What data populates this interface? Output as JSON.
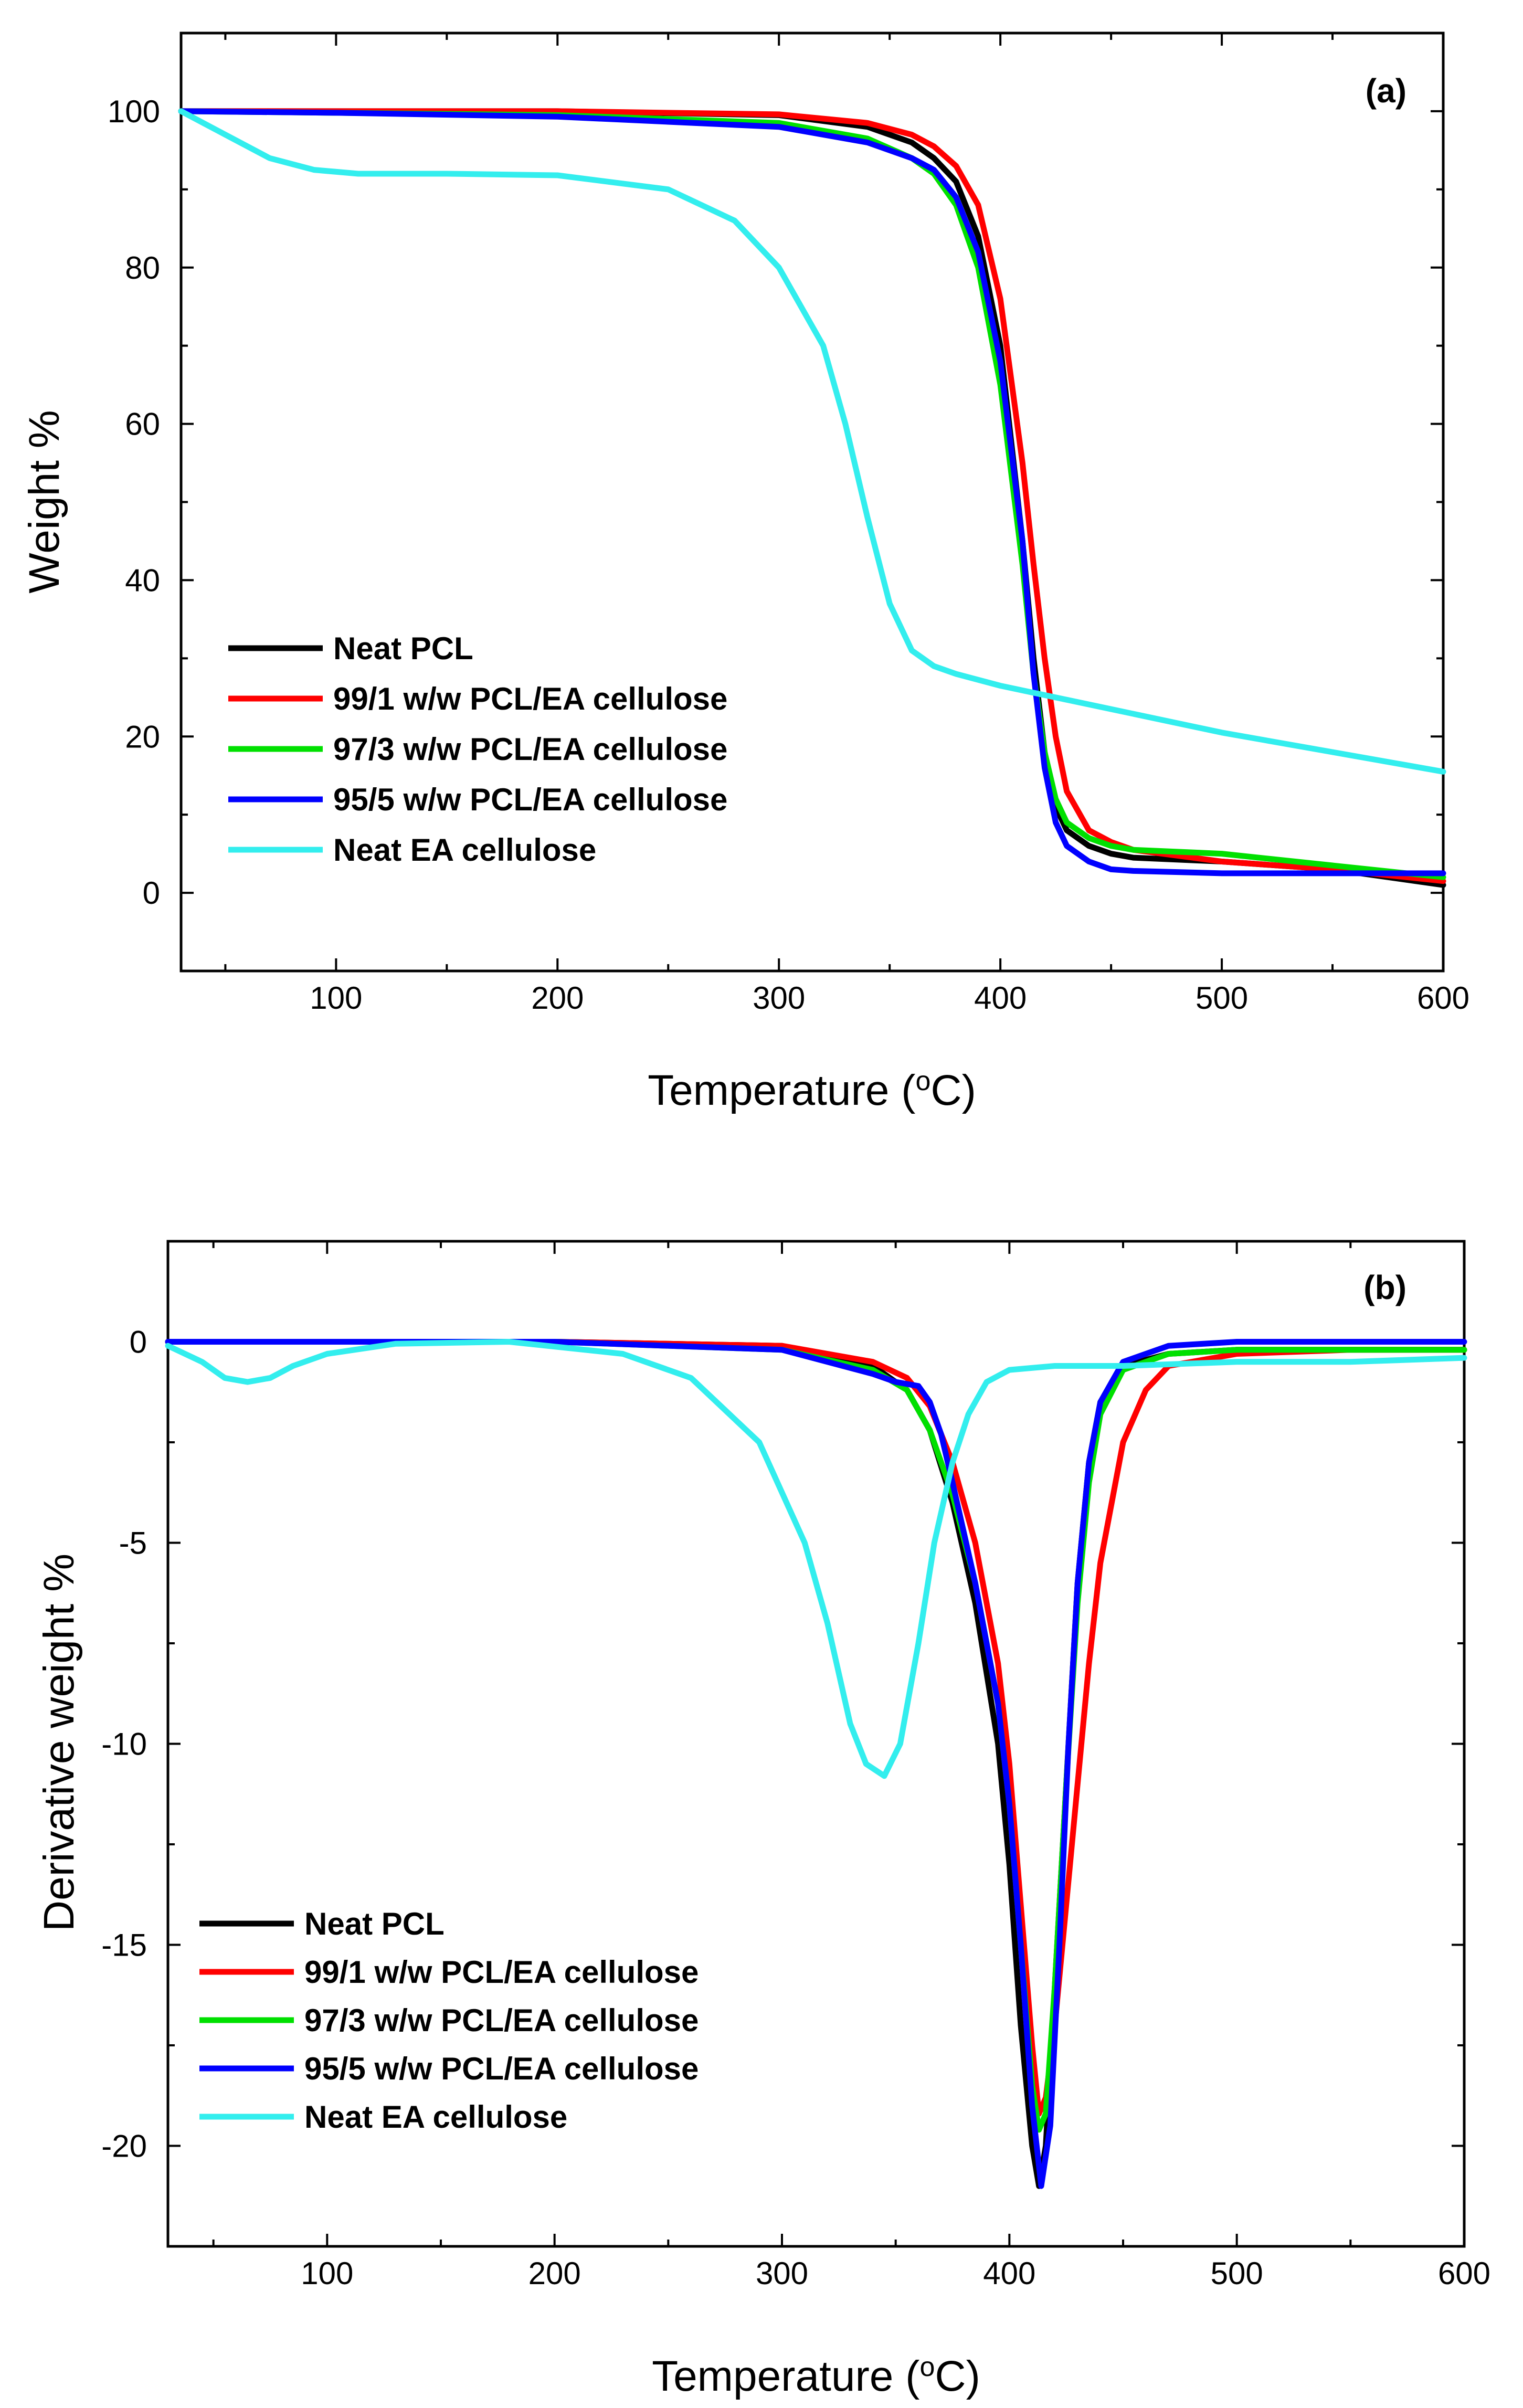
{
  "chart_data": [
    {
      "type": "line",
      "panel_label": "(a)",
      "xlabel_main": "Temperature (",
      "xlabel_sup": "o",
      "xlabel_end": "C)",
      "ylabel": "Weight %",
      "xlim": [
        30,
        600
      ],
      "ylim": [
        -10,
        110
      ],
      "xticks": [
        100,
        200,
        300,
        400,
        500,
        600
      ],
      "yticks": [
        0,
        20,
        40,
        60,
        80,
        100
      ],
      "legend_position": "lower-left",
      "series": [
        {
          "name": "Neat PCL",
          "color": "#000000",
          "x": [
            30,
            100,
            200,
            300,
            340,
            360,
            370,
            380,
            390,
            400,
            410,
            415,
            420,
            425,
            430,
            440,
            450,
            460,
            500,
            550,
            600
          ],
          "y": [
            100,
            100,
            100,
            99.5,
            98,
            96,
            94,
            91,
            84,
            70,
            45,
            30,
            18,
            11,
            8,
            6,
            5,
            4.5,
            4,
            3,
            1
          ]
        },
        {
          "name": "99/1 w/w PCL/EA cellulose",
          "color": "#ff0000",
          "x": [
            30,
            100,
            200,
            300,
            340,
            360,
            370,
            380,
            390,
            400,
            410,
            415,
            420,
            425,
            430,
            440,
            450,
            460,
            500,
            550,
            600
          ],
          "y": [
            100,
            100,
            100,
            99.6,
            98.5,
            97,
            95.5,
            93,
            88,
            76,
            55,
            42,
            30,
            20,
            13,
            8,
            6.5,
            5.5,
            4,
            3,
            1.5
          ]
        },
        {
          "name": "97/3 w/w PCL/EA cellulose",
          "color": "#00e000",
          "x": [
            30,
            100,
            200,
            300,
            340,
            360,
            370,
            380,
            390,
            400,
            410,
            415,
            420,
            425,
            430,
            440,
            450,
            460,
            500,
            550,
            600
          ],
          "y": [
            100,
            99.8,
            99.5,
            98.5,
            96.5,
            94,
            92,
            88,
            80,
            65,
            42,
            28,
            18,
            12,
            9,
            7,
            6,
            5.5,
            5,
            3.5,
            2
          ]
        },
        {
          "name": "95/5 w/w PCL/EA cellulose",
          "color": "#0000ff",
          "x": [
            30,
            100,
            200,
            300,
            340,
            360,
            370,
            380,
            390,
            400,
            410,
            415,
            420,
            425,
            430,
            440,
            450,
            460,
            500,
            550,
            600
          ],
          "y": [
            100,
            99.8,
            99.3,
            98,
            96,
            94,
            92.5,
            89,
            82,
            68,
            45,
            28,
            16,
            9,
            6,
            4,
            3,
            2.8,
            2.5,
            2.5,
            2.5
          ]
        },
        {
          "name": "Neat EA cellulose",
          "color": "#33eeee",
          "x": [
            30,
            50,
            70,
            90,
            110,
            150,
            200,
            250,
            280,
            300,
            320,
            330,
            340,
            350,
            360,
            370,
            380,
            400,
            450,
            500,
            550,
            600
          ],
          "y": [
            100,
            97,
            94,
            92.5,
            92,
            92,
            91.8,
            90,
            86,
            80,
            70,
            60,
            48,
            37,
            31,
            29,
            28,
            26.5,
            23.5,
            20.5,
            18,
            15.5
          ]
        }
      ]
    },
    {
      "type": "line",
      "panel_label": "(b)",
      "xlabel_main": "Temperature (",
      "xlabel_sup": "o",
      "xlabel_end": "C)",
      "ylabel": "Derivative weight %",
      "xlim": [
        30,
        600
      ],
      "ylim": [
        -22.5,
        2.5
      ],
      "xticks": [
        100,
        200,
        300,
        400,
        500,
        600
      ],
      "yticks": [
        0,
        -5,
        -10,
        -15,
        -20
      ],
      "legend_position": "lower-left",
      "series": [
        {
          "name": "Neat PCL",
          "color": "#000000",
          "x": [
            30,
            100,
            200,
            300,
            340,
            355,
            365,
            375,
            385,
            395,
            400,
            405,
            410,
            413,
            416,
            420,
            425,
            430,
            435,
            440,
            450,
            470,
            500,
            550,
            600
          ],
          "y": [
            0,
            0,
            0,
            -0.1,
            -0.6,
            -1.2,
            -2.2,
            -4,
            -6.5,
            -10,
            -13,
            -17,
            -20,
            -21,
            -20,
            -16,
            -11,
            -6,
            -3,
            -1.5,
            -0.6,
            -0.3,
            -0.2,
            -0.2,
            -0.2
          ]
        },
        {
          "name": "99/1 w/w PCL/EA cellulose",
          "color": "#ff0000",
          "x": [
            30,
            100,
            200,
            300,
            340,
            355,
            365,
            375,
            385,
            395,
            400,
            405,
            410,
            413,
            416,
            420,
            425,
            430,
            435,
            440,
            450,
            460,
            470,
            500,
            550,
            600
          ],
          "y": [
            0,
            0,
            0,
            -0.1,
            -0.5,
            -0.9,
            -1.6,
            -3,
            -5,
            -8,
            -10.5,
            -14,
            -17.5,
            -19.2,
            -18.8,
            -17,
            -14,
            -11,
            -8,
            -5.5,
            -2.5,
            -1.2,
            -0.6,
            -0.3,
            -0.2,
            -0.2
          ]
        },
        {
          "name": "97/3 w/w PCL/EA cellulose",
          "color": "#00e000",
          "x": [
            30,
            100,
            200,
            300,
            340,
            355,
            365,
            375,
            385,
            395,
            400,
            405,
            410,
            413,
            416,
            420,
            425,
            430,
            435,
            440,
            450,
            470,
            500,
            550,
            600
          ],
          "y": [
            0,
            0,
            0,
            -0.2,
            -0.7,
            -1.2,
            -2.2,
            -3.8,
            -6,
            -9,
            -11.5,
            -15,
            -18.5,
            -19.6,
            -19.2,
            -16,
            -11,
            -6.5,
            -3.5,
            -1.8,
            -0.7,
            -0.3,
            -0.2,
            -0.2,
            -0.2
          ]
        },
        {
          "name": "95/5 w/w PCL/EA cellulose",
          "color": "#0000ff",
          "x": [
            30,
            100,
            200,
            300,
            340,
            350,
            360,
            365,
            370,
            375,
            385,
            395,
            400,
            405,
            410,
            414,
            418,
            422,
            426,
            430,
            435,
            440,
            450,
            470,
            500,
            550,
            600
          ],
          "y": [
            0,
            0,
            0,
            -0.2,
            -0.8,
            -1,
            -1.1,
            -1.5,
            -2.3,
            -3.5,
            -6,
            -9,
            -11.5,
            -15,
            -19,
            -21,
            -19.5,
            -15,
            -10,
            -6,
            -3,
            -1.5,
            -0.5,
            -0.1,
            0,
            0,
            0
          ]
        },
        {
          "name": "Neat EA cellulose",
          "color": "#33eeee",
          "x": [
            30,
            45,
            55,
            65,
            75,
            85,
            100,
            130,
            180,
            230,
            260,
            290,
            310,
            320,
            330,
            337,
            345,
            352,
            360,
            367,
            375,
            382,
            390,
            400,
            420,
            450,
            500,
            550,
            600
          ],
          "y": [
            -0.1,
            -0.5,
            -0.9,
            -1,
            -0.9,
            -0.6,
            -0.3,
            -0.05,
            0,
            -0.3,
            -0.9,
            -2.5,
            -5,
            -7,
            -9.5,
            -10.5,
            -10.8,
            -10,
            -7.5,
            -5,
            -3,
            -1.8,
            -1,
            -0.7,
            -0.6,
            -0.6,
            -0.5,
            -0.5,
            -0.4
          ]
        }
      ]
    }
  ]
}
